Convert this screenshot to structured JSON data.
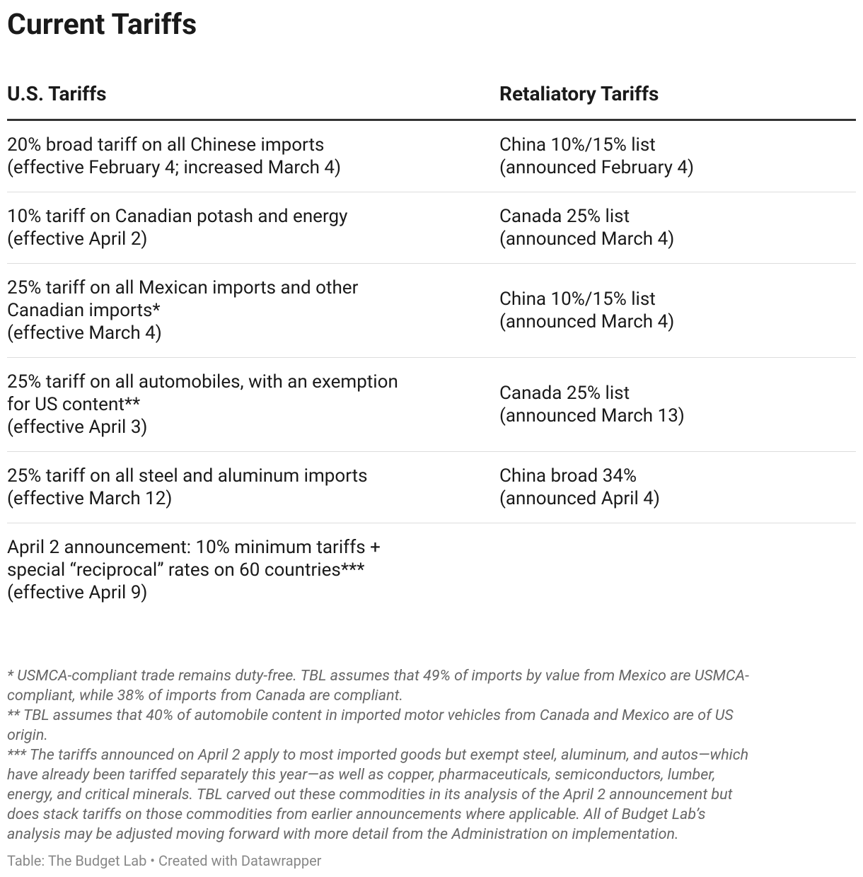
{
  "title": "Current Tariffs",
  "table": {
    "columns": [
      "U.S. Tariffs",
      "Retaliatory Tariffs"
    ],
    "rows": [
      {
        "us": [
          "20% broad tariff on all Chinese imports",
          "(effective February 4; increased March 4)"
        ],
        "retaliatory": [
          "China 10%/15% list",
          "(announced February 4)"
        ]
      },
      {
        "us": [
          "10% tariff on Canadian potash and energy",
          "(effective April 2)"
        ],
        "retaliatory": [
          "Canada 25% list",
          "(announced March 4)"
        ]
      },
      {
        "us": [
          "25% tariff on all Mexican imports and other",
          "Canadian imports*",
          "(effective March 4)"
        ],
        "retaliatory": [
          "China 10%/15% list",
          "(announced March 4)"
        ]
      },
      {
        "us": [
          "25% tariff on all automobiles, with an exemption",
          "for US content**",
          "(effective April 3)"
        ],
        "retaliatory": [
          "Canada 25% list",
          "(announced March 13)"
        ]
      },
      {
        "us": [
          "25% tariff on all steel and aluminum imports",
          "(effective March 12)"
        ],
        "retaliatory": [
          "China broad 34%",
          "(announced April 4)"
        ]
      },
      {
        "us": [
          "April 2 announcement: 10% minimum tariffs +",
          "special “reciprocal” rates on 60 countries***",
          "(effective April 9)"
        ]
      }
    ]
  },
  "footnotes": [
    [
      "* USMCA-compliant trade remains duty-free. TBL assumes that 49% of imports by value from Mexico are USMCA-",
      "compliant, while 38% of imports from Canada are compliant."
    ],
    [
      "** TBL assumes that 40% of automobile content in imported motor vehicles from Canada and Mexico are of US",
      "origin."
    ],
    [
      "*** The tariffs announced on April 2 apply to most imported goods but exempt steel, aluminum, and autos—which",
      "have already been tariffed separately this year—as well as copper, pharmaceuticals, semiconductors, lumber,",
      "energy, and critical minerals. TBL carved out these commodities in its analysis of the April 2 announcement but",
      "does stack tariffs on those commodities from earlier announcements where applicable. All of Budget Lab’s",
      "analysis may be adjusted moving forward with more detail from the Administration on implementation."
    ]
  ],
  "source": "Table: The Budget Lab • Created with Datawrapper"
}
